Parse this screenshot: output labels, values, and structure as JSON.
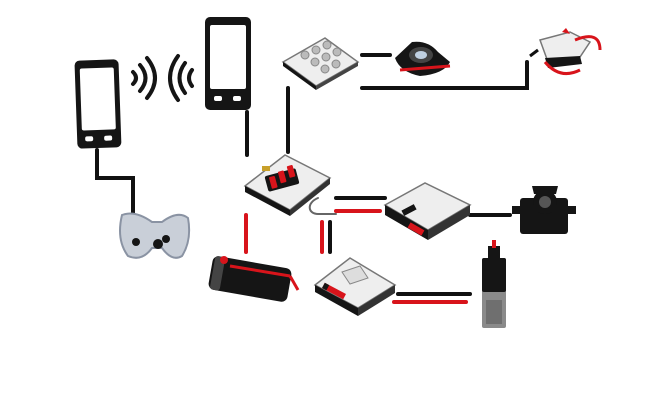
{
  "diagram": {
    "components": [
      {
        "id": "phone-left",
        "kind": "smartphone"
      },
      {
        "id": "phone-right",
        "kind": "smartphone"
      },
      {
        "id": "wifi-signal-left",
        "kind": "wireless-signal"
      },
      {
        "id": "wifi-signal-right",
        "kind": "wireless-signal"
      },
      {
        "id": "game-controller",
        "kind": "gamepad"
      },
      {
        "id": "main-board",
        "kind": "controller-board"
      },
      {
        "id": "sensor-board",
        "kind": "sensor-module"
      },
      {
        "id": "camera-module",
        "kind": "camera"
      },
      {
        "id": "gripper-servo",
        "kind": "servo-gripper"
      },
      {
        "id": "servo-driver-board",
        "kind": "driver-board"
      },
      {
        "id": "servo-motor",
        "kind": "servo"
      },
      {
        "id": "battery-pack",
        "kind": "battery"
      },
      {
        "id": "motor-driver-board",
        "kind": "driver-board"
      },
      {
        "id": "dc-motor",
        "kind": "motor"
      }
    ],
    "connections": [
      {
        "from": "phone-left",
        "to": "game-controller",
        "wire": "black"
      },
      {
        "from": "phone-right",
        "to": "main-board",
        "wire": "black"
      },
      {
        "from": "main-board",
        "to": "sensor-board",
        "wire": "black"
      },
      {
        "from": "sensor-board",
        "to": "camera-module",
        "wire": "black"
      },
      {
        "from": "camera-module",
        "to": "gripper-servo",
        "wire": "black"
      },
      {
        "from": "main-board",
        "to": "servo-driver-board",
        "wire": "black"
      },
      {
        "from": "servo-driver-board",
        "to": "servo-motor",
        "wire": "black"
      },
      {
        "from": "main-board",
        "to": "battery-pack",
        "wire": "red"
      },
      {
        "from": "main-board",
        "to": "motor-driver-board",
        "wire": "red-black"
      },
      {
        "from": "motor-driver-board",
        "to": "dc-motor",
        "wire": "red-black"
      }
    ],
    "colors": {
      "wire_black": "#111111",
      "wire_red": "#d8141b",
      "device_black": "#151515",
      "board_white": "#eeeeee",
      "board_edge": "#9a9a9a",
      "controller_gray": "#c9cfd8"
    }
  }
}
